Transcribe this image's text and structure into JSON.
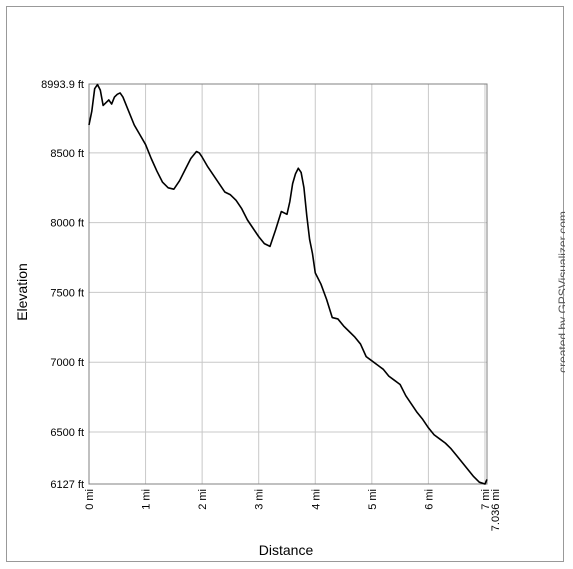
{
  "chart_data": {
    "type": "line",
    "title": "",
    "xlabel": "Distance",
    "ylabel": "Elevation",
    "credit": "created by GPSVisualizer.com",
    "xlim": [
      0,
      7.036
    ],
    "ylim": [
      6127,
      8993.9
    ],
    "grid": true,
    "colors": {
      "line": "#000000",
      "grid": "#c8c8c8",
      "axis": "#808080"
    },
    "x_ticks": [
      {
        "value": 0,
        "label": "0 mi"
      },
      {
        "value": 1,
        "label": "1 mi"
      },
      {
        "value": 2,
        "label": "2 mi"
      },
      {
        "value": 3,
        "label": "3 mi"
      },
      {
        "value": 4,
        "label": "4 mi"
      },
      {
        "value": 5,
        "label": "5 mi"
      },
      {
        "value": 6,
        "label": "6 mi"
      },
      {
        "value": 7,
        "label": "7 mi"
      },
      {
        "value": 7.036,
        "label": "7.036 mi"
      }
    ],
    "y_ticks": [
      {
        "value": 6127,
        "label": "6127 ft"
      },
      {
        "value": 6500,
        "label": "6500 ft"
      },
      {
        "value": 7000,
        "label": "7000 ft"
      },
      {
        "value": 7500,
        "label": "7500 ft"
      },
      {
        "value": 8000,
        "label": "8000 ft"
      },
      {
        "value": 8500,
        "label": "8500 ft"
      },
      {
        "value": 8993.9,
        "label": "8993.9 ft"
      }
    ],
    "series": [
      {
        "x": [
          0.0,
          0.05,
          0.1,
          0.15,
          0.2,
          0.25,
          0.3,
          0.35,
          0.4,
          0.45,
          0.5,
          0.55,
          0.6,
          0.65,
          0.7,
          0.8,
          0.9,
          1.0,
          1.1,
          1.2,
          1.3,
          1.4,
          1.5,
          1.6,
          1.7,
          1.8,
          1.9,
          1.95,
          2.0,
          2.1,
          2.2,
          2.3,
          2.4,
          2.5,
          2.6,
          2.7,
          2.8,
          2.9,
          3.0,
          3.1,
          3.2,
          3.3,
          3.4,
          3.5,
          3.55,
          3.6,
          3.65,
          3.7,
          3.75,
          3.8,
          3.85,
          3.9,
          3.95,
          4.0,
          4.1,
          4.2,
          4.3,
          4.4,
          4.5,
          4.6,
          4.7,
          4.8,
          4.9,
          5.0,
          5.1,
          5.2,
          5.3,
          5.4,
          5.5,
          5.6,
          5.7,
          5.8,
          5.9,
          6.0,
          6.1,
          6.2,
          6.3,
          6.4,
          6.5,
          6.6,
          6.7,
          6.8,
          6.9,
          7.0,
          7.036
        ],
        "y": [
          8700,
          8800,
          8960,
          8990,
          8950,
          8840,
          8860,
          8880,
          8850,
          8900,
          8920,
          8930,
          8900,
          8850,
          8800,
          8700,
          8630,
          8560,
          8460,
          8370,
          8290,
          8250,
          8240,
          8300,
          8380,
          8460,
          8510,
          8500,
          8470,
          8400,
          8340,
          8280,
          8220,
          8200,
          8160,
          8100,
          8020,
          7960,
          7900,
          7850,
          7830,
          7950,
          8080,
          8060,
          8150,
          8280,
          8350,
          8390,
          8360,
          8250,
          8050,
          7880,
          7780,
          7640,
          7560,
          7450,
          7320,
          7310,
          7260,
          7220,
          7180,
          7130,
          7040,
          7010,
          6980,
          6950,
          6900,
          6870,
          6840,
          6760,
          6700,
          6640,
          6590,
          6530,
          6480,
          6450,
          6420,
          6380,
          6330,
          6280,
          6230,
          6180,
          6140,
          6127,
          6160
        ]
      }
    ]
  }
}
